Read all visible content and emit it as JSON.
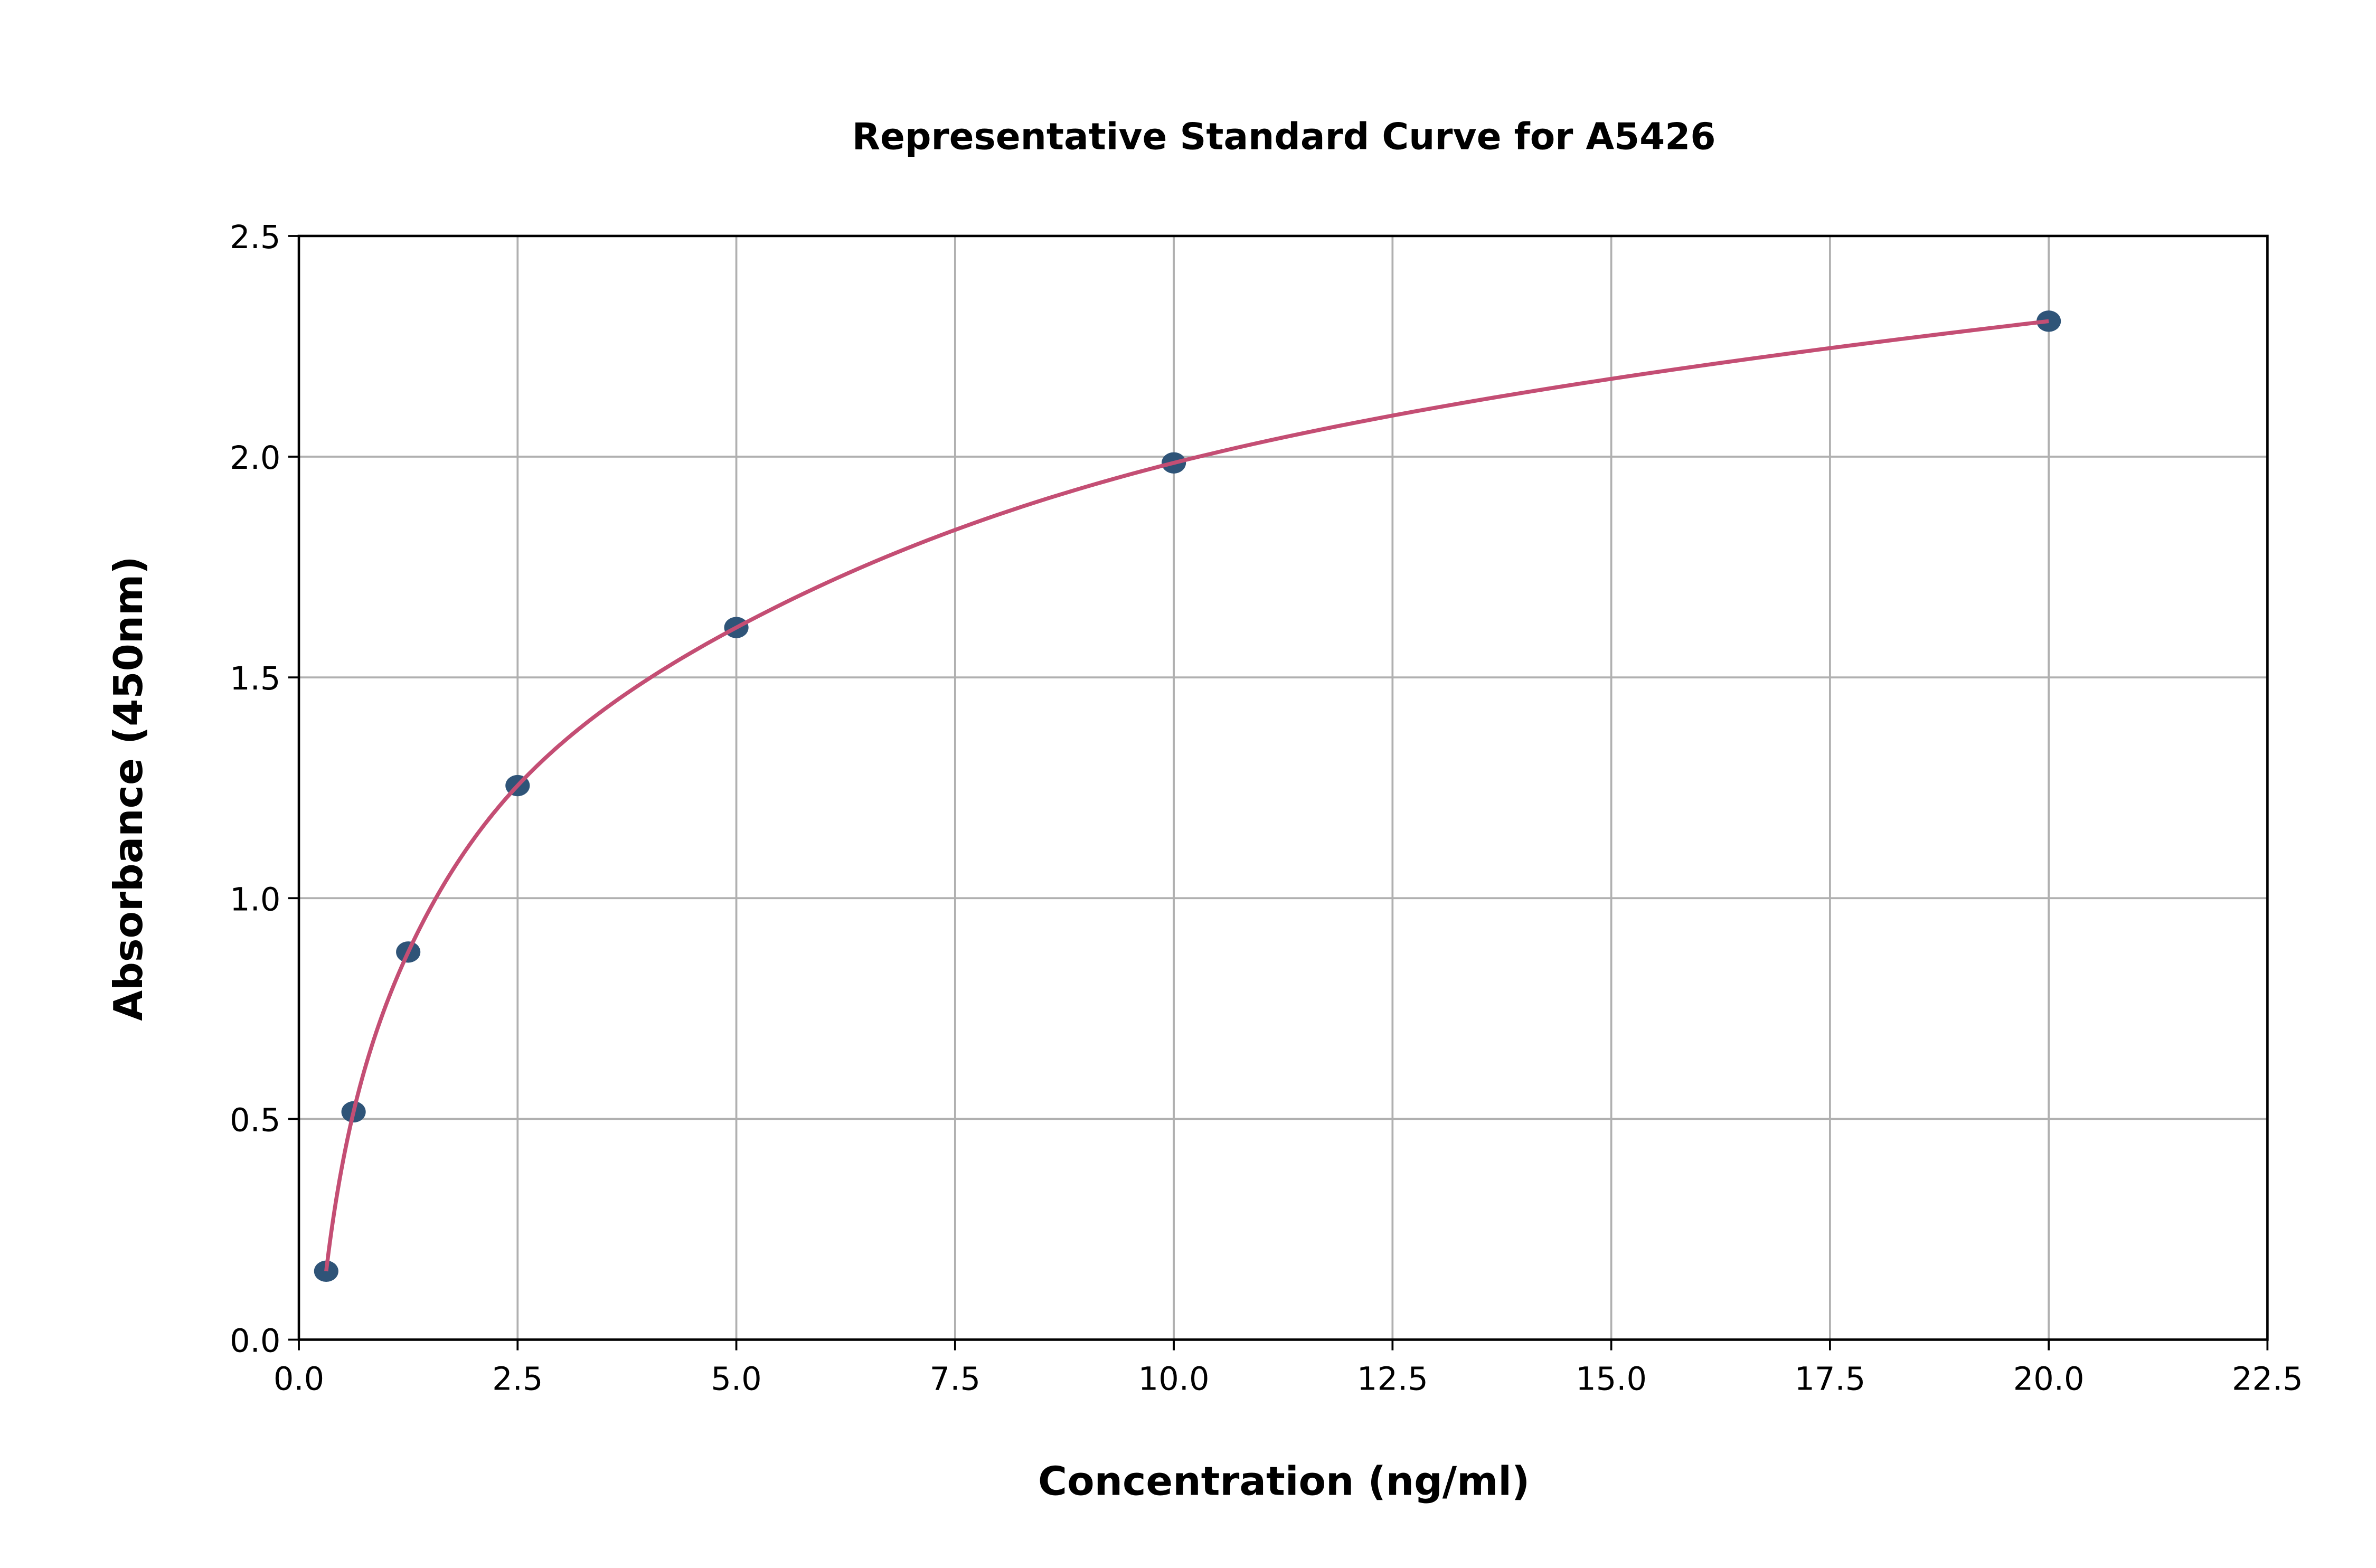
{
  "chart_data": {
    "type": "scatter",
    "title": "Representative Standard Curve for A5426",
    "xlabel": "Concentration (ng/ml)",
    "ylabel": "Absorbance (450nm)",
    "xlim": [
      0,
      22.5
    ],
    "ylim": [
      0,
      2.5
    ],
    "xticks": [
      "0.0",
      "2.5",
      "5.0",
      "7.5",
      "10.0",
      "12.5",
      "15.0",
      "17.5",
      "20.0",
      "22.5"
    ],
    "yticks": [
      "0.0",
      "0.5",
      "1.0",
      "1.5",
      "2.0",
      "2.5"
    ],
    "grid": true,
    "series": [
      {
        "x": [
          0.3125,
          0.625,
          1.25,
          2.5,
          5,
          10,
          20
        ],
        "y": [
          0.155,
          0.516,
          0.878,
          1.255,
          1.613,
          1.986,
          2.307
        ],
        "marker_color": "#2f5478",
        "fit_line_color": "#c44e74"
      }
    ]
  }
}
